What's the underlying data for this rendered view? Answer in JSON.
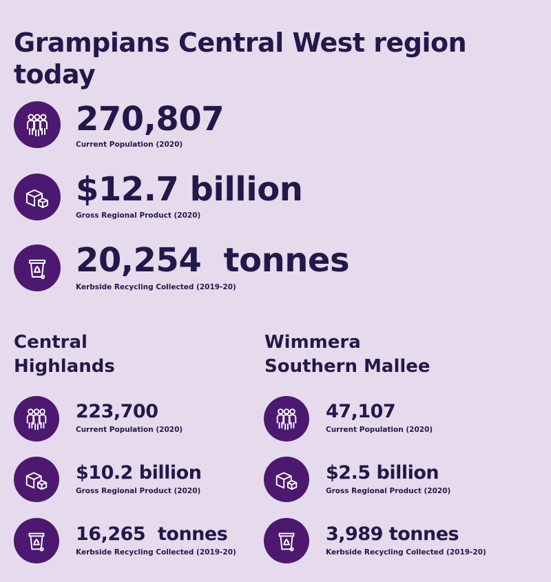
{
  "title": "Grampians Central West region today",
  "region": {
    "population": {
      "value": "270,807",
      "label": "Current Population (2020)",
      "icon": "people-icon"
    },
    "grp": {
      "value": "$12.7 billion",
      "label": "Gross Regional Product (2020)",
      "icon": "boxes-icon"
    },
    "recycling": {
      "value": "20,254  tonnes",
      "label": "Kerbside Recycling Collected (2019-20)",
      "icon": "recycling-bin-icon"
    }
  },
  "central_highlands": {
    "heading": "Central Highlands",
    "population": {
      "value": "223,700",
      "label": "Current Population (2020)"
    },
    "grp": {
      "value": "$10.2 billion",
      "label": "Gross Regional Product (2020)"
    },
    "recycling": {
      "value": "16,265  tonnes",
      "label": "Kerbside Recycling Collected (2019-20)"
    }
  },
  "wimmera": {
    "heading": "Wimmera Southern Mallee",
    "population": {
      "value": "47,107",
      "label": "Current Population (2020)"
    },
    "grp": {
      "value": "$2.5 billion",
      "label": "Gross Regional Product (2020)"
    },
    "recycling": {
      "value": "3,989 tonnes",
      "label": "Kerbside Recycling Collected (2019-20)"
    }
  },
  "colors": {
    "background": "#e6dbec",
    "text": "#23184a",
    "icon_circle": "#4d1970",
    "icon_stroke": "#ffffff"
  }
}
